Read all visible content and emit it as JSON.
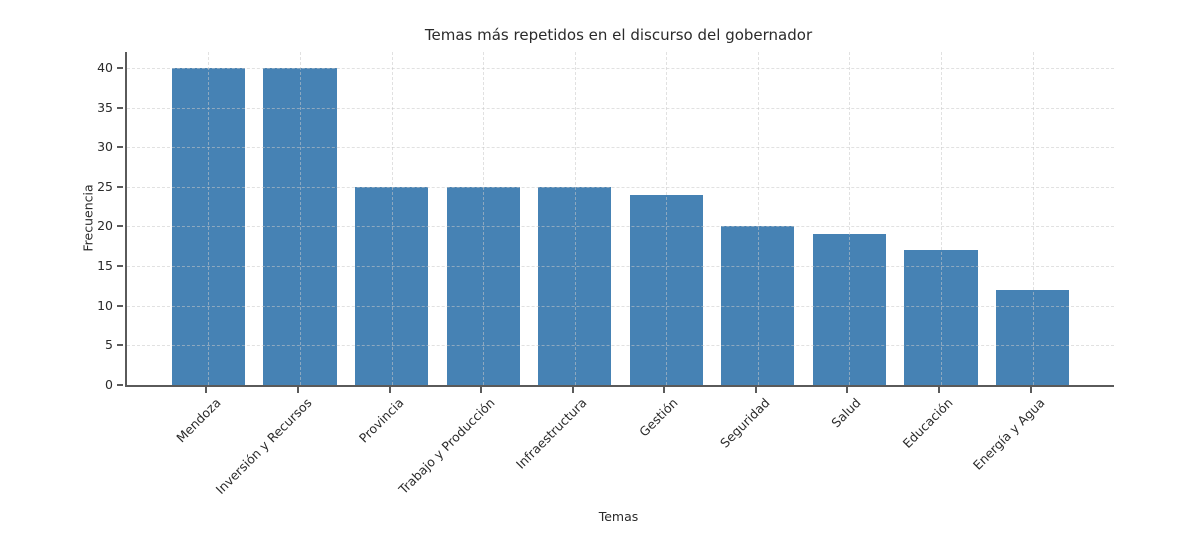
{
  "chart_data": {
    "type": "bar",
    "title": "Temas más repetidos en el discurso del gobernador",
    "xlabel": "Temas",
    "ylabel": "Frecuencia",
    "categories": [
      "Mendoza",
      "Inversión y Recursos",
      "Provincia",
      "Trabajo y Producción",
      "Infraestructura",
      "Gestión",
      "Seguridad",
      "Salud",
      "Educación",
      "Energía y Agua"
    ],
    "values": [
      40,
      40,
      25,
      25,
      25,
      24,
      20,
      19,
      17,
      12
    ],
    "ylim": [
      0,
      42
    ],
    "yticks": [
      0,
      5,
      10,
      15,
      20,
      25,
      30,
      35,
      40
    ],
    "bar_color": "#4682B4",
    "bar_width_fraction": 0.8,
    "grid": "dashed",
    "grid_on_top": true,
    "x_label_rotation_deg": 45,
    "legend": "none"
  }
}
